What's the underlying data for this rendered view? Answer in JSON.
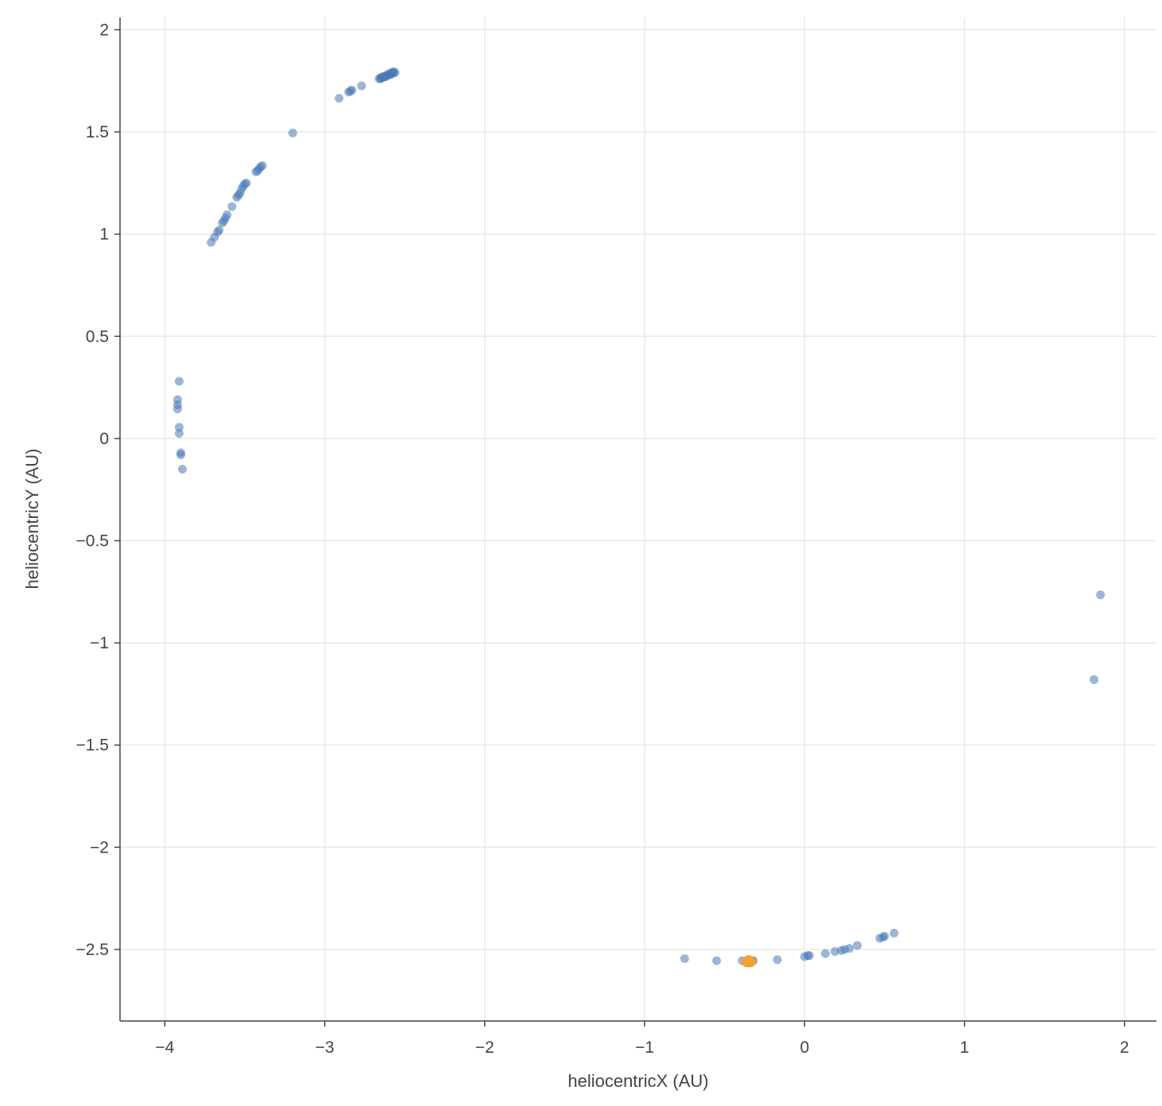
{
  "chart_data": {
    "type": "scatter",
    "title": "",
    "xlabel": "heliocentricX (AU)",
    "ylabel": "heliocentricY (AU)",
    "xlim": [
      -4.28,
      2.2
    ],
    "ylim": [
      -2.85,
      2.06
    ],
    "x_ticks": [
      -4,
      -3,
      -2,
      -1,
      0,
      1,
      2
    ],
    "x_tick_labels": [
      "−4",
      "−3",
      "−2",
      "−1",
      "0",
      "1",
      "2"
    ],
    "y_ticks": [
      2,
      1.5,
      1,
      0.5,
      0,
      -0.5,
      -1,
      -1.5,
      -2,
      -2.5
    ],
    "y_tick_labels": [
      "2",
      "1.5",
      "1",
      "0.5",
      "0",
      "−0.5",
      "−1",
      "−1.5",
      "−2",
      "−2.5"
    ],
    "grid": true,
    "colors": {
      "series": "#4a7ab6",
      "highlight": "#f5a032",
      "grid": "#e8e8e8",
      "axis": "#444444"
    },
    "series": [
      {
        "color": "#4a7ab6",
        "opacity": 0.55,
        "points": [
          [
            -2.66,
            1.76
          ],
          [
            -2.65,
            1.76
          ],
          [
            -2.64,
            1.765
          ],
          [
            -2.63,
            1.77
          ],
          [
            -2.62,
            1.77
          ],
          [
            -2.61,
            1.775
          ],
          [
            -2.6,
            1.78
          ],
          [
            -2.59,
            1.78
          ],
          [
            -2.58,
            1.785
          ],
          [
            -2.57,
            1.79
          ],
          [
            -2.56,
            1.79
          ],
          [
            -2.65,
            1.765
          ],
          [
            -2.62,
            1.775
          ],
          [
            -2.6,
            1.785
          ],
          [
            -2.58,
            1.79
          ],
          [
            -2.57,
            1.795
          ],
          [
            -2.64,
            1.77
          ],
          [
            -2.77,
            1.725
          ],
          [
            -2.83,
            1.705
          ],
          [
            -2.85,
            1.695
          ],
          [
            -2.84,
            1.7
          ],
          [
            -2.91,
            1.665
          ],
          [
            -3.2,
            1.495
          ],
          [
            -3.39,
            1.335
          ],
          [
            -3.4,
            1.33
          ],
          [
            -3.41,
            1.32
          ],
          [
            -3.42,
            1.31
          ],
          [
            -3.43,
            1.305
          ],
          [
            -3.49,
            1.25
          ],
          [
            -3.5,
            1.245
          ],
          [
            -3.51,
            1.235
          ],
          [
            -3.52,
            1.22
          ],
          [
            -3.53,
            1.2
          ],
          [
            -3.54,
            1.19
          ],
          [
            -3.55,
            1.18
          ],
          [
            -3.58,
            1.135
          ],
          [
            -3.61,
            1.095
          ],
          [
            -3.62,
            1.08
          ],
          [
            -3.63,
            1.065
          ],
          [
            -3.64,
            1.055
          ],
          [
            -3.66,
            1.02
          ],
          [
            -3.67,
            1.01
          ],
          [
            -3.69,
            0.985
          ],
          [
            -3.71,
            0.96
          ],
          [
            -3.91,
            0.28
          ],
          [
            -3.92,
            0.19
          ],
          [
            -3.92,
            0.165
          ],
          [
            -3.92,
            0.145
          ],
          [
            -3.91,
            0.055
          ],
          [
            -3.91,
            0.025
          ],
          [
            -3.9,
            -0.07
          ],
          [
            -3.9,
            -0.08
          ],
          [
            -3.89,
            -0.15
          ],
          [
            1.85,
            -0.765
          ],
          [
            1.81,
            -1.18
          ],
          [
            -0.75,
            -2.545
          ],
          [
            -0.55,
            -2.555
          ],
          [
            -0.39,
            -2.555
          ],
          [
            -0.33,
            -2.555
          ],
          [
            -0.32,
            -2.555
          ],
          [
            -0.17,
            -2.55
          ],
          [
            0.0,
            -2.535
          ],
          [
            0.02,
            -2.53
          ],
          [
            0.03,
            -2.53
          ],
          [
            0.13,
            -2.52
          ],
          [
            0.19,
            -2.51
          ],
          [
            0.23,
            -2.505
          ],
          [
            0.25,
            -2.5
          ],
          [
            0.28,
            -2.495
          ],
          [
            0.33,
            -2.48
          ],
          [
            0.47,
            -2.445
          ],
          [
            0.49,
            -2.44
          ],
          [
            0.5,
            -2.435
          ],
          [
            0.56,
            -2.42
          ]
        ]
      },
      {
        "color": "#f5a032",
        "opacity": 1,
        "points": [
          [
            -0.35,
            -2.555
          ],
          [
            -0.34,
            -2.56
          ],
          [
            -0.36,
            -2.56
          ]
        ]
      }
    ]
  }
}
